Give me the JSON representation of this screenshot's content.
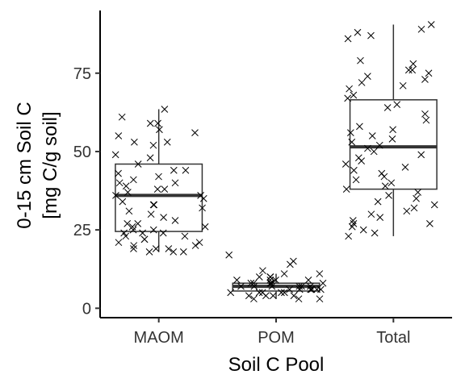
{
  "chart_data": {
    "type": "boxplot",
    "xlabel": "Soil C Pool",
    "ylabel_line1": "0-15 cm Soil C",
    "ylabel_line2": "[mg C/g soil]",
    "ylim": [
      -3,
      95
    ],
    "yticks": [
      0,
      25,
      50,
      75
    ],
    "grid": false,
    "categories": [
      "MAOM",
      "POM",
      "Total"
    ],
    "boxes": [
      {
        "category": "MAOM",
        "min": 18,
        "q1": 24.5,
        "median": 36,
        "q3": 46,
        "max": 63.5
      },
      {
        "category": "POM",
        "min": 3,
        "q1": 5.5,
        "median": 7,
        "q3": 8,
        "max": 11
      },
      {
        "category": "Total",
        "min": 23,
        "q1": 38,
        "median": 51.5,
        "q3": 66.5,
        "max": 90.5
      }
    ],
    "points": [
      {
        "category": "MAOM",
        "values": [
          59,
          63.5,
          61,
          53,
          52,
          57,
          55,
          56,
          53,
          48,
          46,
          44,
          44,
          43,
          42,
          41,
          40,
          39,
          38,
          38,
          37,
          36,
          36,
          35,
          34,
          33,
          32,
          31,
          30,
          29,
          28,
          27,
          27,
          26,
          25,
          25,
          24,
          24,
          23,
          23,
          22,
          22,
          21,
          21,
          20,
          20,
          19,
          19,
          19,
          18,
          18,
          18,
          24,
          26,
          33,
          40,
          49,
          59
        ]
      },
      {
        "category": "POM",
        "values": [
          15,
          14,
          11,
          10,
          10,
          9,
          9,
          9,
          8,
          8,
          8,
          8,
          7,
          7,
          7,
          7,
          7,
          6,
          6,
          6,
          6,
          6,
          5,
          5,
          5,
          5,
          4,
          4,
          4,
          3,
          3,
          3,
          17,
          12,
          11,
          10,
          9,
          8,
          7,
          6,
          5,
          4
        ]
      },
      {
        "category": "Total",
        "values": [
          88,
          89,
          90.5,
          87,
          86,
          79,
          78,
          76,
          76,
          75,
          74,
          73,
          72,
          70,
          68,
          67,
          65,
          62,
          60,
          58,
          57,
          56,
          55,
          54,
          53,
          52,
          51,
          50,
          49,
          48,
          47,
          46,
          45,
          44,
          42,
          41,
          40,
          39,
          38,
          37,
          36,
          35,
          34,
          33,
          32,
          31,
          30,
          29,
          28,
          27,
          27,
          26,
          25,
          24,
          23,
          71,
          64,
          43
        ]
      }
    ]
  }
}
